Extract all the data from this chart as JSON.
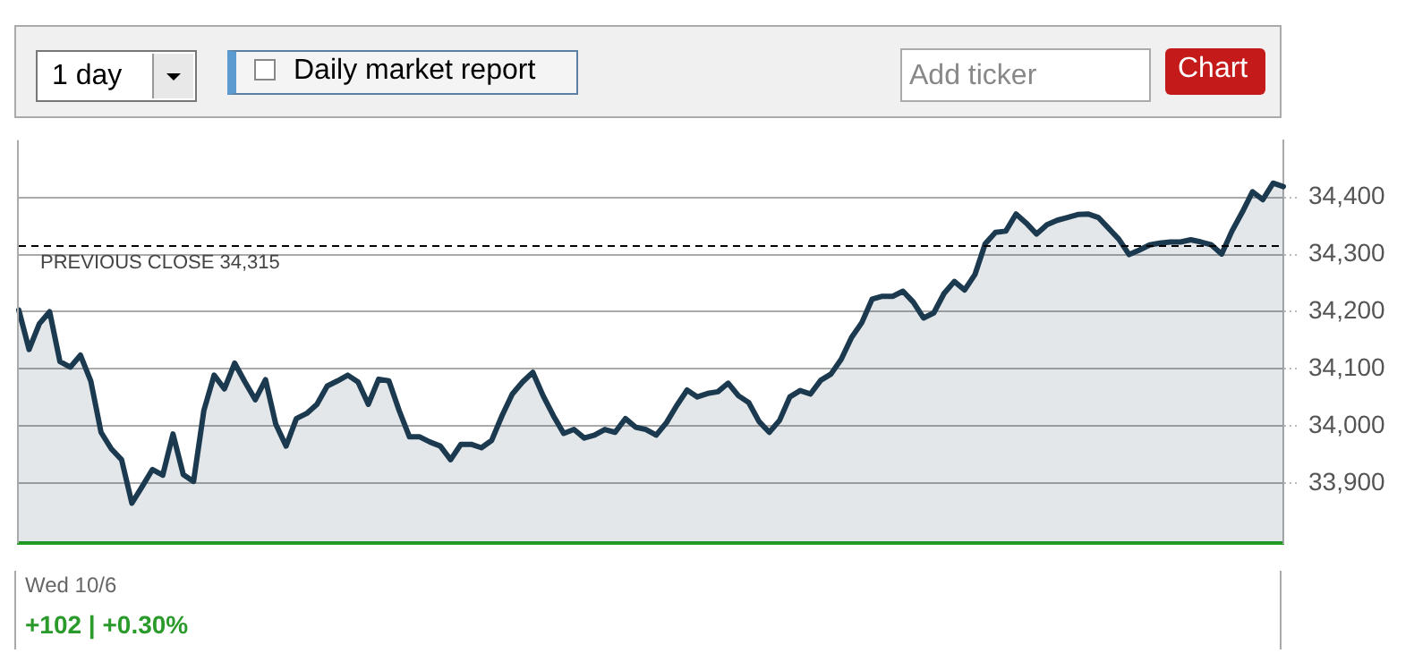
{
  "chart_data": {
    "type": "area",
    "categories": [
      null,
      null,
      null,
      null,
      null,
      null,
      null,
      null,
      null,
      null,
      null,
      null,
      null,
      null,
      null,
      null,
      null,
      null,
      null,
      null,
      null,
      null,
      null,
      null,
      null,
      null,
      null,
      null,
      null,
      null,
      null,
      null,
      null,
      null,
      null,
      null,
      null,
      null,
      null,
      null,
      null,
      null,
      null,
      null,
      null,
      null,
      null,
      null,
      null,
      null,
      null,
      null,
      null,
      null,
      null,
      null,
      null,
      null,
      null,
      null,
      null,
      null,
      null,
      null,
      null,
      null,
      null,
      null,
      null,
      null,
      null,
      null,
      null,
      null,
      null,
      null,
      null,
      null,
      null,
      null,
      null,
      null,
      null,
      null,
      null,
      null,
      null,
      null,
      null,
      null,
      null,
      null,
      null,
      null,
      null,
      null,
      null,
      null,
      null,
      null,
      null,
      null,
      null,
      null,
      null,
      null,
      null,
      null,
      null,
      null,
      null,
      null,
      null,
      null,
      null,
      null,
      null,
      null,
      null,
      null,
      null,
      null,
      null,
      null
    ],
    "series": [
      {
        "color": "#1c3a4f",
        "values": [
          34203,
          34134,
          34179,
          34200,
          34113,
          34103,
          34124,
          34079,
          33989,
          33960,
          33941,
          33865,
          33894,
          33924,
          33914,
          33986,
          33915,
          33903,
          34027,
          34089,
          34065,
          34110,
          34077,
          34046,
          34081,
          34003,
          33965,
          34013,
          34022,
          34038,
          34070,
          34079,
          34089,
          34077,
          34038,
          34082,
          34079,
          34027,
          33981,
          33981,
          33972,
          33965,
          33941,
          33968,
          33968,
          33962,
          33975,
          34018,
          34056,
          34077,
          34094,
          34053,
          34018,
          33987,
          33994,
          33979,
          33984,
          33994,
          33989,
          34013,
          33998,
          33994,
          33984,
          34006,
          34036,
          34063,
          34051,
          34057,
          34060,
          34075,
          34053,
          34041,
          34008,
          33989,
          34010,
          34051,
          34062,
          34056,
          34080,
          34091,
          34117,
          34155,
          34181,
          34222,
          34227,
          34227,
          34236,
          34217,
          34189,
          34198,
          34232,
          34253,
          34238,
          34265,
          34319,
          34339,
          34341,
          34371,
          34355,
          34336,
          34352,
          34360,
          34365,
          34370,
          34371,
          34365,
          34346,
          34327,
          34300,
          34308,
          34317,
          34320,
          34322,
          34322,
          34326,
          34322,
          34317,
          34301,
          34341,
          34374,
          34410,
          34396,
          34425,
          34419
        ]
      }
    ],
    "ylim": [
      33795,
      34500
    ],
    "yticks": [
      {
        "value": 33900,
        "label": "33,900"
      },
      {
        "value": 34000,
        "label": "34,000"
      },
      {
        "value": 34100,
        "label": "34,100"
      },
      {
        "value": 34200,
        "label": "34,200"
      },
      {
        "value": 34300,
        "label": "34,300"
      },
      {
        "value": 34400,
        "label": "34,400"
      }
    ],
    "grid": "y",
    "line_style": "solid",
    "ref_lines": [
      {
        "axis": "y",
        "value": 34315,
        "label": "PREVIOUS CLOSE 34,315",
        "color": "#000000",
        "line_style": "dashed"
      }
    ],
    "xlabel": "Wed 10/6",
    "annotations": [
      "1 day",
      "Daily market report",
      "Add ticker",
      "Chart",
      "+102 | +0.30%"
    ]
  }
}
